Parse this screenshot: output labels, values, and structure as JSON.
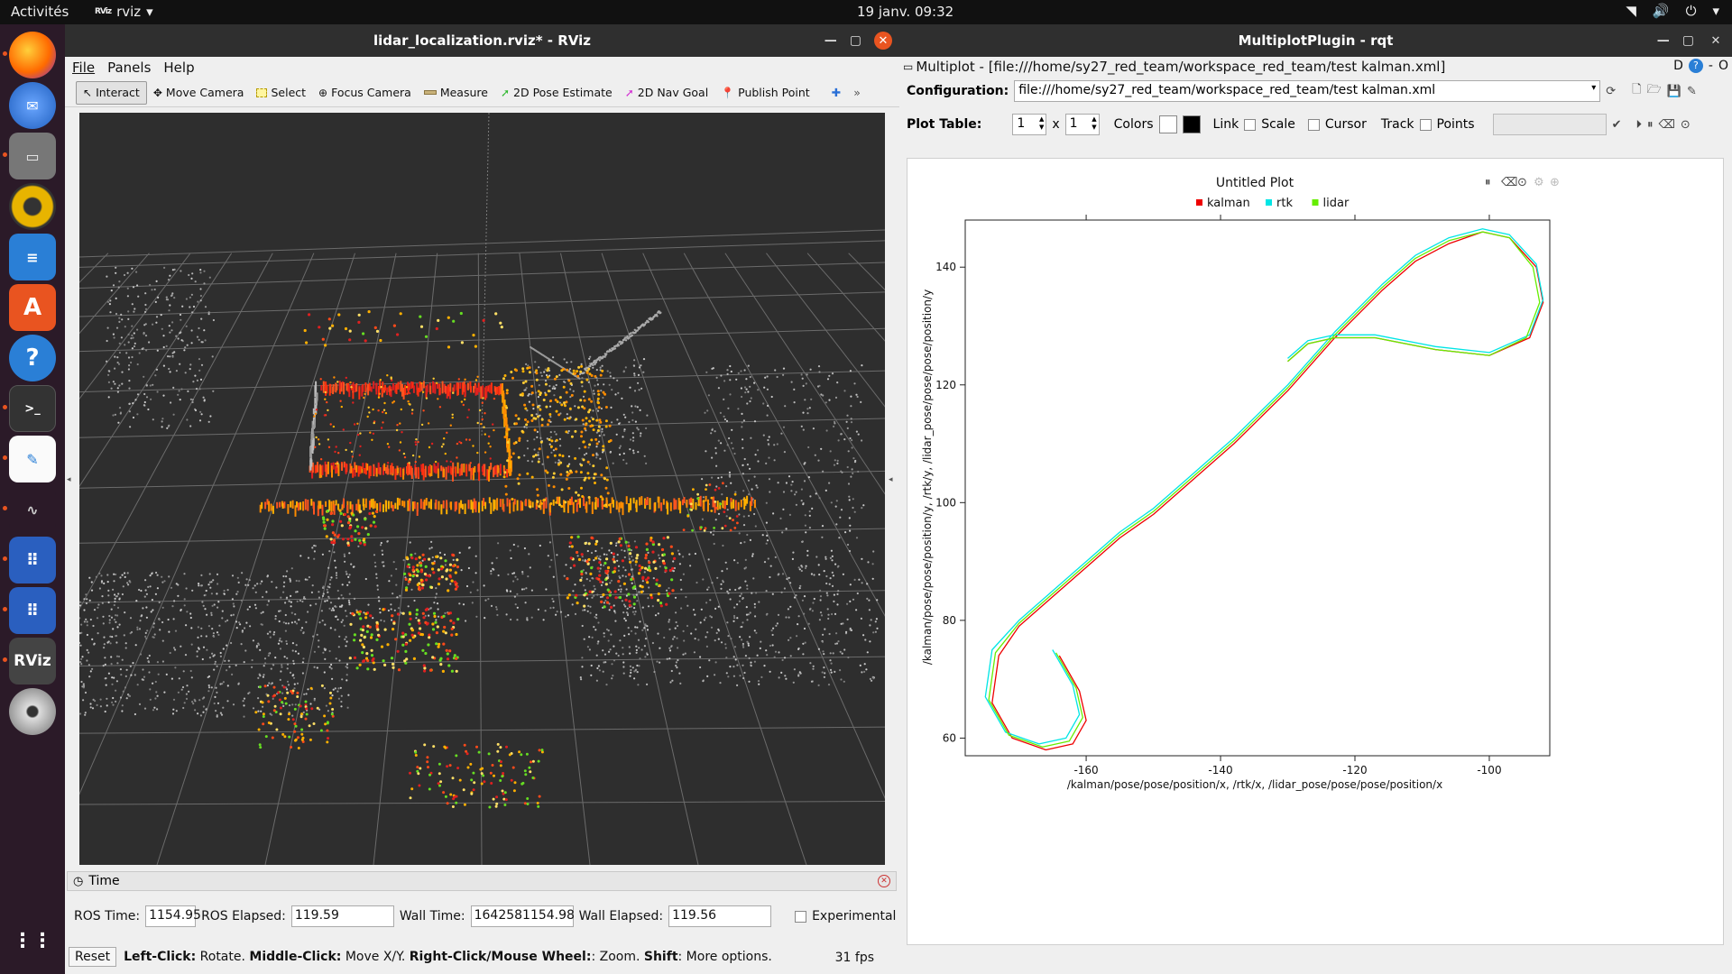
{
  "topbar": {
    "activities": "Activités",
    "app_name": "rviz",
    "clock": "19 janv.  09:32"
  },
  "dock": {
    "items": [
      "firefox-icon",
      "thunderbird-icon",
      "files-icon",
      "rhythmbox-icon",
      "writer-icon",
      "software-icon",
      "help-icon",
      "terminal-icon",
      "text-editor-icon",
      "system-monitor-icon",
      "app-grid-icon",
      "app-grid-icon",
      "rviz-icon",
      "dvd-icon",
      "show-apps-icon"
    ],
    "rviz_label": "RViz"
  },
  "rviz": {
    "title": "lidar_localization.rviz* - RViz",
    "menu": [
      "File",
      "Panels",
      "Help"
    ],
    "tools": [
      {
        "label": "Interact",
        "icon": "cursor-icon"
      },
      {
        "label": "Move Camera",
        "icon": "move-icon"
      },
      {
        "label": "Select",
        "icon": "select-icon"
      },
      {
        "label": "Focus Camera",
        "icon": "focus-icon"
      },
      {
        "label": "Measure",
        "icon": "ruler-icon"
      },
      {
        "label": "2D Pose Estimate",
        "icon": "arrow-green-icon"
      },
      {
        "label": "2D Nav Goal",
        "icon": "arrow-pink-icon"
      },
      {
        "label": "Publish Point",
        "icon": "pin-icon"
      }
    ],
    "time_panel": {
      "title": "Time",
      "ros_time_label": "ROS Time:",
      "ros_time": "1154.95",
      "ros_elapsed_label": "ROS Elapsed:",
      "ros_elapsed": "119.59",
      "wall_time_label": "Wall Time:",
      "wall_time": "1642581154.98",
      "wall_elapsed_label": "Wall Elapsed:",
      "wall_elapsed": "119.56",
      "experimental_label": "Experimental"
    },
    "status": {
      "reset": "Reset",
      "left_click": "Left-Click:",
      "left_click_text": "Rotate.",
      "middle_click": "Middle-Click:",
      "middle_click_text": "Move X/Y.",
      "right_click": "Right-Click/Mouse Wheel:",
      "right_click_text": ": Zoom.",
      "shift": "Shift",
      "shift_text": ": More options.",
      "fps": "31 fps"
    }
  },
  "multiplot": {
    "title": "MultiplotPlugin - rqt",
    "subtitle": "Multiplot - [file:///home/sy27_red_team/workspace_red_team/test kalman.xml]",
    "config_label": "Configuration:",
    "config_value": "file:///home/sy27_red_team/workspace_red_team/test kalman.xml",
    "plot_table_label": "Plot Table:",
    "rows": "1",
    "times": "x",
    "cols": "1",
    "colors_label": "Colors",
    "link_label": "Link",
    "scale_label": "Scale",
    "cursor_label": "Cursor",
    "track_label": "Track",
    "points_label": "Points",
    "right_d": "D",
    "right_o": "O"
  },
  "chart_data": {
    "type": "line",
    "title": "Untitled Plot",
    "xlabel": "/kalman/pose/pose/position/x, /rtk/x, /lidar_pose/pose/pose/position/x",
    "ylabel": "/kalman/pose/pose/position/y, /rtk/y, /lidar_pose/pose/pose/position/y",
    "xlim": [
      -178,
      -91
    ],
    "ylim": [
      57,
      148
    ],
    "xticks": [
      -160,
      -140,
      -120,
      -100
    ],
    "yticks": [
      60,
      80,
      100,
      120,
      140
    ],
    "legend_position": "top",
    "series": [
      {
        "name": "kalman",
        "color": "#ee0000",
        "x": [
          -164,
          -161,
          -160,
          -162,
          -166,
          -171,
          -174,
          -173,
          -170,
          -165,
          -160,
          -155,
          -150,
          -145,
          -138,
          -130,
          -123,
          -116,
          -111,
          -106,
          -101,
          -97,
          -93,
          -92,
          -94,
          -100,
          -108,
          -117,
          -123,
          -127,
          -130
        ],
        "y": [
          74,
          68,
          63,
          59,
          58,
          60,
          66,
          74,
          79,
          84,
          89,
          94,
          98,
          103,
          110,
          119,
          128,
          136,
          141,
          144,
          146,
          145,
          140,
          134,
          128,
          125,
          126,
          128,
          128,
          127,
          124
        ]
      },
      {
        "name": "rtk",
        "color": "#00e5e5",
        "x": [
          -165,
          -162,
          -161,
          -163,
          -167,
          -172,
          -175,
          -174,
          -170,
          -165,
          -160,
          -155,
          -150,
          -145,
          -138,
          -130,
          -123,
          -116,
          -111,
          -106,
          -101,
          -97,
          -93,
          -92,
          -94,
          -100,
          -108,
          -117,
          -123,
          -127,
          -130
        ],
        "y": [
          75,
          69,
          64,
          60,
          59,
          61,
          67,
          75,
          80,
          85,
          90,
          95,
          99,
          104,
          111,
          120,
          129,
          137,
          142,
          145,
          146.5,
          145.5,
          140.5,
          134.5,
          128.5,
          125.5,
          126.5,
          128.5,
          128.5,
          127.5,
          124.5
        ]
      },
      {
        "name": "lidar",
        "color": "#66ee00",
        "x": [
          -164.5,
          -161.5,
          -160.5,
          -162.5,
          -166.5,
          -171.5,
          -174.5,
          -173.5,
          -170,
          -165,
          -160,
          -155,
          -150,
          -145,
          -138,
          -130,
          -123,
          -116,
          -111,
          -106,
          -101,
          -97,
          -93.5,
          -92.5,
          -94.5,
          -100,
          -108,
          -117,
          -123,
          -127,
          -130
        ],
        "y": [
          74.5,
          68.5,
          63.5,
          59.5,
          58.5,
          60.5,
          66.5,
          74.5,
          79.5,
          84.5,
          89.5,
          94.5,
          98.5,
          103.5,
          110.5,
          119.5,
          128.5,
          136.5,
          141.5,
          144.5,
          146,
          145,
          140,
          134,
          128,
          125,
          126,
          128,
          128,
          127,
          124
        ]
      }
    ]
  }
}
